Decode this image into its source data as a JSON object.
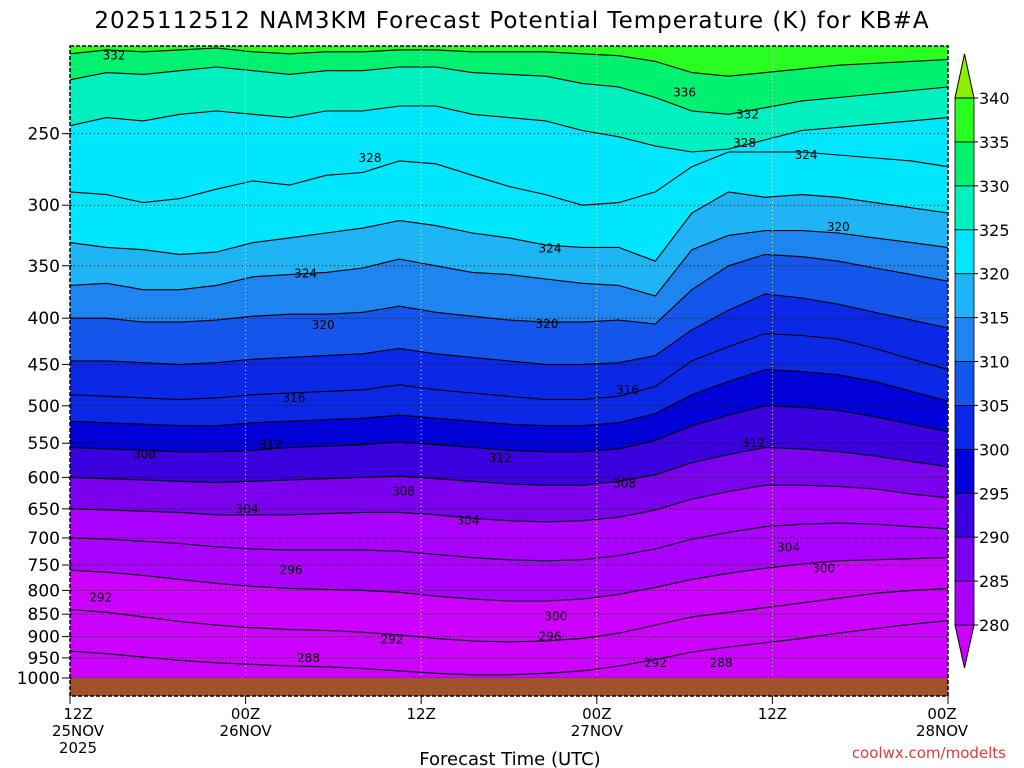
{
  "chart_data": {
    "type": "heatmap",
    "title": "2025112512 NAM3KM Forecast Potential Temperature (K) for KB#A",
    "xlabel": "Forecast Time (UTC)",
    "credit": "coolwx.com/modelts",
    "x_ticks": [
      {
        "hour": 0,
        "line1": "12Z",
        "line2": "25NOV",
        "line3": "2025"
      },
      {
        "hour": 12,
        "line1": "00Z",
        "line2": "26NOV",
        "line3": ""
      },
      {
        "hour": 24,
        "line1": "12Z",
        "line2": "",
        "line3": ""
      },
      {
        "hour": 36,
        "line1": "00Z",
        "line2": "27NOV",
        "line3": ""
      },
      {
        "hour": 48,
        "line1": "12Z",
        "line2": "",
        "line3": ""
      },
      {
        "hour": 60,
        "line1": "00Z",
        "line2": "28NOV",
        "line3": ""
      }
    ],
    "xlim_hours": [
      0,
      60
    ],
    "y_ticks": [
      {
        "p": 250,
        "label": "250"
      },
      {
        "p": 300,
        "label": "300"
      },
      {
        "p": 350,
        "label": "350"
      },
      {
        "p": 400,
        "label": "400"
      },
      {
        "p": 450,
        "label": "450"
      },
      {
        "p": 500,
        "label": "500"
      },
      {
        "p": 550,
        "label": "550"
      },
      {
        "p": 600,
        "label": "600"
      },
      {
        "p": 650,
        "label": "650"
      },
      {
        "p": 700,
        "label": "700"
      },
      {
        "p": 750,
        "label": "750"
      },
      {
        "p": 800,
        "label": "800"
      },
      {
        "p": 850,
        "label": "850"
      },
      {
        "p": 900,
        "label": "900"
      },
      {
        "p": 950,
        "label": "950"
      },
      {
        "p": 1000,
        "label": "1000"
      }
    ],
    "ylim_hpa": [
      200,
      1000
    ],
    "colorbar": {
      "levels": [
        280,
        285,
        290,
        295,
        300,
        305,
        310,
        315,
        320,
        325,
        330,
        335,
        340
      ],
      "labels": [
        "280",
        "285",
        "290",
        "295",
        "300",
        "305",
        "310",
        "315",
        "320",
        "325",
        "330",
        "335",
        "340"
      ],
      "colors": [
        "#cc00ff",
        "#aa00ff",
        "#7a00ee",
        "#3a00dd",
        "#0000d8",
        "#0a28e6",
        "#1456ec",
        "#1e84f0",
        "#1eb4f6",
        "#00e6ff",
        "#00f0c0",
        "#00f070",
        "#28ff20",
        "#8cf000"
      ]
    },
    "contour_labels": [
      {
        "text": "332",
        "h": 3.0,
        "p": 205
      },
      {
        "text": "336",
        "h": 42.0,
        "p": 225
      },
      {
        "text": "332",
        "h": 46.3,
        "p": 238
      },
      {
        "text": "328",
        "h": 46.1,
        "p": 256
      },
      {
        "text": "324",
        "h": 50.3,
        "p": 264
      },
      {
        "text": "328",
        "h": 20.5,
        "p": 266
      },
      {
        "text": "320",
        "h": 52.5,
        "p": 317
      },
      {
        "text": "324",
        "h": 32.8,
        "p": 335
      },
      {
        "text": "324",
        "h": 16.1,
        "p": 357
      },
      {
        "text": "320",
        "h": 17.3,
        "p": 407
      },
      {
        "text": "320",
        "h": 32.6,
        "p": 406
      },
      {
        "text": "316",
        "h": 15.3,
        "p": 490
      },
      {
        "text": "316",
        "h": 38.1,
        "p": 480
      },
      {
        "text": "312",
        "h": 13.7,
        "p": 552
      },
      {
        "text": "312",
        "h": 29.4,
        "p": 571
      },
      {
        "text": "312",
        "h": 46.7,
        "p": 550
      },
      {
        "text": "308",
        "h": 5.1,
        "p": 566
      },
      {
        "text": "308",
        "h": 22.8,
        "p": 622
      },
      {
        "text": "308",
        "h": 37.9,
        "p": 609
      },
      {
        "text": "304",
        "h": 12.1,
        "p": 650
      },
      {
        "text": "304",
        "h": 27.2,
        "p": 670
      },
      {
        "text": "304",
        "h": 49.1,
        "p": 717
      },
      {
        "text": "300",
        "h": 51.5,
        "p": 757
      },
      {
        "text": "300",
        "h": 33.2,
        "p": 855
      },
      {
        "text": "296",
        "h": 15.1,
        "p": 760
      },
      {
        "text": "296",
        "h": 32.8,
        "p": 900
      },
      {
        "text": "292",
        "h": 2.1,
        "p": 815
      },
      {
        "text": "292",
        "h": 22.0,
        "p": 907
      },
      {
        "text": "292",
        "h": 40.0,
        "p": 962
      },
      {
        "text": "288",
        "h": 16.3,
        "p": 950
      },
      {
        "text": "288",
        "h": 44.5,
        "p": 962
      }
    ],
    "isentropes": [
      {
        "theta": 340,
        "p": [
          200,
          200,
          200,
          200,
          200,
          200,
          200,
          200,
          200,
          200,
          200,
          200,
          200,
          200,
          200,
          200,
          200,
          200,
          200,
          200,
          200,
          200,
          200,
          200,
          200
        ]
      },
      {
        "theta": 336,
        "p": [
          204,
          202,
          203,
          202,
          201,
          203,
          204,
          203,
          203,
          202,
          202,
          203,
          203,
          203,
          204,
          205,
          208,
          214,
          216,
          214,
          212,
          210,
          209,
          208,
          207
        ]
      },
      {
        "theta": 332,
        "p": [
          218,
          214,
          215,
          213,
          211,
          213,
          215,
          213,
          213,
          211,
          211,
          214,
          215,
          216,
          220,
          222,
          228,
          236,
          238,
          234,
          230,
          228,
          226,
          224,
          222
        ]
      },
      {
        "theta": 328,
        "p": [
          245,
          240,
          242,
          238,
          236,
          238,
          240,
          236,
          236,
          233,
          233,
          238,
          240,
          242,
          248,
          252,
          258,
          262,
          260,
          254,
          248,
          246,
          244,
          242,
          240
        ]
      },
      {
        "theta": 324,
        "p": [
          290,
          292,
          298,
          295,
          288,
          282,
          285,
          278,
          276,
          268,
          270,
          278,
          286,
          292,
          300,
          298,
          290,
          272,
          262,
          262,
          262,
          264,
          266,
          268,
          272
        ]
      },
      {
        "theta": 320,
        "p": [
          330,
          334,
          336,
          340,
          338,
          330,
          326,
          322,
          318,
          312,
          316,
          322,
          326,
          332,
          334,
          334,
          346,
          306,
          290,
          294,
          292,
          294,
          298,
          302,
          306
        ]
      },
      {
        "theta": 316,
        "p": [
          368,
          366,
          372,
          372,
          368,
          360,
          358,
          356,
          352,
          344,
          350,
          356,
          358,
          362,
          366,
          368,
          378,
          336,
          324,
          320,
          320,
          322,
          326,
          330,
          334
        ]
      },
      {
        "theta": 312,
        "p": [
          400,
          400,
          404,
          404,
          402,
          398,
          396,
          396,
          394,
          388,
          394,
          398,
          402,
          404,
          404,
          402,
          406,
          372,
          350,
          340,
          342,
          346,
          352,
          358,
          364
        ]
      },
      {
        "theta": 308,
        "p": [
          446,
          446,
          448,
          450,
          448,
          444,
          442,
          440,
          438,
          432,
          438,
          442,
          446,
          450,
          450,
          448,
          440,
          412,
          392,
          376,
          380,
          386,
          394,
          402,
          410
        ]
      },
      {
        "theta": 304,
        "p": [
          486,
          488,
          490,
          492,
          490,
          486,
          484,
          482,
          480,
          474,
          480,
          484,
          488,
          492,
          492,
          488,
          476,
          446,
          430,
          416,
          418,
          422,
          432,
          444,
          456
        ]
      },
      {
        "theta": 300,
        "p": [
          520,
          522,
          524,
          526,
          526,
          522,
          520,
          518,
          516,
          512,
          516,
          520,
          524,
          526,
          526,
          522,
          510,
          486,
          470,
          456,
          458,
          462,
          470,
          482,
          494
        ]
      },
      {
        "theta": 296,
        "p": [
          556,
          558,
          560,
          562,
          562,
          560,
          556,
          554,
          552,
          548,
          552,
          556,
          560,
          562,
          562,
          558,
          546,
          526,
          512,
          500,
          502,
          506,
          514,
          524,
          534
        ]
      },
      {
        "theta": 292,
        "p": [
          600,
          602,
          604,
          606,
          608,
          606,
          604,
          602,
          600,
          598,
          602,
          606,
          610,
          612,
          612,
          606,
          596,
          578,
          566,
          556,
          558,
          562,
          568,
          576,
          584
        ]
      },
      {
        "theta": 288,
        "p": [
          650,
          652,
          654,
          656,
          660,
          660,
          660,
          658,
          656,
          656,
          660,
          666,
          670,
          672,
          670,
          664,
          652,
          634,
          622,
          612,
          612,
          614,
          618,
          626,
          632
        ]
      },
      {
        "theta": 284,
        "p": [
          700,
          702,
          706,
          710,
          716,
          720,
          722,
          722,
          722,
          724,
          730,
          736,
          740,
          742,
          740,
          732,
          720,
          702,
          690,
          680,
          676,
          674,
          676,
          680,
          684
        ]
      },
      {
        "theta": 280,
        "p": [
          760,
          764,
          770,
          778,
          786,
          792,
          796,
          798,
          800,
          804,
          812,
          818,
          822,
          822,
          818,
          808,
          794,
          778,
          766,
          756,
          748,
          742,
          740,
          738,
          736
        ]
      },
      {
        "theta": 276,
        "p": [
          840,
          846,
          856,
          866,
          874,
          880,
          884,
          886,
          890,
          896,
          904,
          910,
          912,
          910,
          904,
          892,
          874,
          856,
          846,
          836,
          826,
          816,
          806,
          800,
          796
        ]
      },
      {
        "theta": 272,
        "p": [
          934,
          940,
          948,
          956,
          962,
          966,
          970,
          972,
          976,
          982,
          988,
          992,
          992,
          988,
          982,
          970,
          954,
          936,
          924,
          914,
          904,
          892,
          882,
          872,
          864
        ]
      }
    ]
  }
}
